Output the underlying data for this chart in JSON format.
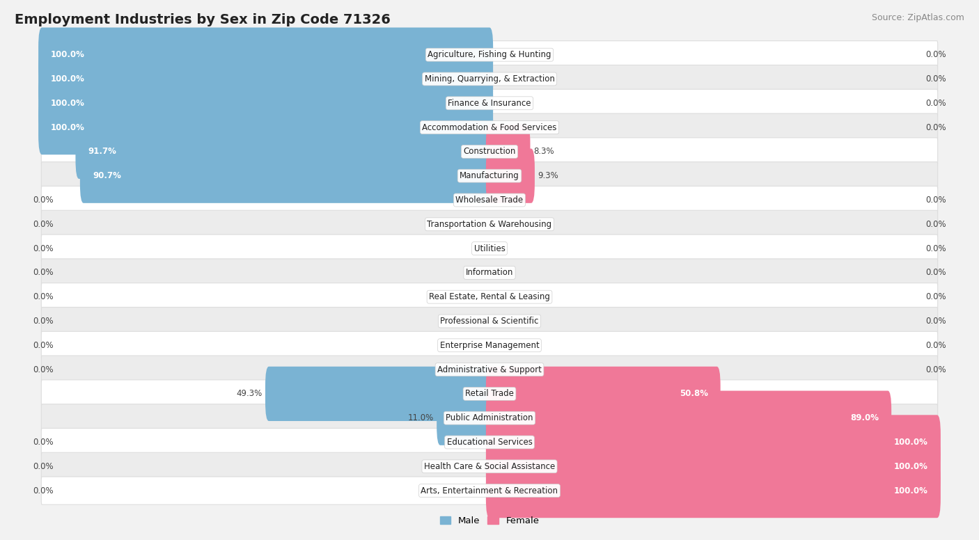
{
  "title": "Employment Industries by Sex in Zip Code 71326",
  "source": "Source: ZipAtlas.com",
  "categories": [
    "Agriculture, Fishing & Hunting",
    "Mining, Quarrying, & Extraction",
    "Finance & Insurance",
    "Accommodation & Food Services",
    "Construction",
    "Manufacturing",
    "Wholesale Trade",
    "Transportation & Warehousing",
    "Utilities",
    "Information",
    "Real Estate, Rental & Leasing",
    "Professional & Scientific",
    "Enterprise Management",
    "Administrative & Support",
    "Retail Trade",
    "Public Administration",
    "Educational Services",
    "Health Care & Social Assistance",
    "Arts, Entertainment & Recreation"
  ],
  "male": [
    100.0,
    100.0,
    100.0,
    100.0,
    91.7,
    90.7,
    0.0,
    0.0,
    0.0,
    0.0,
    0.0,
    0.0,
    0.0,
    0.0,
    49.3,
    11.0,
    0.0,
    0.0,
    0.0
  ],
  "female": [
    0.0,
    0.0,
    0.0,
    0.0,
    8.3,
    9.3,
    0.0,
    0.0,
    0.0,
    0.0,
    0.0,
    0.0,
    0.0,
    0.0,
    50.8,
    89.0,
    100.0,
    100.0,
    100.0
  ],
  "male_color": "#7ab3d3",
  "female_color": "#f07898",
  "bg_color": "#f2f2f2",
  "row_even_color": "#ffffff",
  "row_odd_color": "#ececec",
  "title_fontsize": 14,
  "source_fontsize": 9,
  "label_fontsize": 8.5,
  "pct_fontsize": 8.5,
  "bar_height": 0.65,
  "xlim_left": -105,
  "xlim_right": 105
}
